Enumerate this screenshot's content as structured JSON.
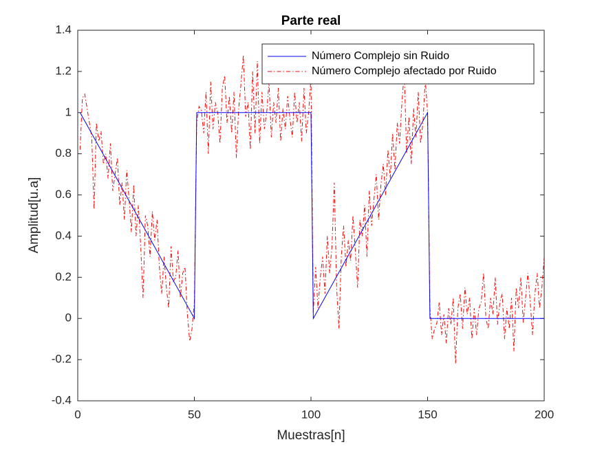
{
  "chart_data": {
    "type": "line",
    "title": "Parte real",
    "x_label": "Muestras[n]",
    "y_label": "Amplitud[u.a]",
    "xlim": [
      0,
      200
    ],
    "xticks": [
      0,
      50,
      100,
      150,
      200
    ],
    "ylim": [
      -0.4,
      1.4
    ],
    "yticks": [
      -0.4,
      -0.2,
      0,
      0.2,
      0.4,
      0.6,
      0.8,
      1,
      1.2,
      1.4
    ],
    "legend": "upper-right",
    "series": [
      {
        "name": "Número Complejo sin Ruido",
        "color": "#0000ff",
        "style": "solid",
        "x": [
          1,
          50,
          51,
          100,
          101,
          150,
          151,
          200
        ],
        "values": [
          1,
          0,
          1,
          1,
          0,
          1,
          0,
          0
        ]
      },
      {
        "name": "Número Complejo afectado por Ruido",
        "color": "#ff0000",
        "style": "dashdot",
        "x": [
          1,
          2,
          3,
          4,
          5,
          6,
          7,
          8,
          9,
          10,
          11,
          12,
          13,
          14,
          15,
          16,
          17,
          18,
          19,
          20,
          21,
          22,
          23,
          24,
          25,
          26,
          27,
          28,
          29,
          30,
          31,
          32,
          33,
          34,
          35,
          36,
          37,
          38,
          39,
          40,
          41,
          42,
          43,
          44,
          45,
          46,
          47,
          48,
          49,
          50,
          51,
          52,
          53,
          54,
          55,
          56,
          57,
          58,
          59,
          60,
          61,
          62,
          63,
          64,
          65,
          66,
          67,
          68,
          69,
          70,
          71,
          72,
          73,
          74,
          75,
          76,
          77,
          78,
          79,
          80,
          81,
          82,
          83,
          84,
          85,
          86,
          87,
          88,
          89,
          90,
          91,
          92,
          93,
          94,
          95,
          96,
          97,
          98,
          99,
          100,
          101,
          102,
          103,
          104,
          105,
          106,
          107,
          108,
          109,
          110,
          111,
          112,
          113,
          114,
          115,
          116,
          117,
          118,
          119,
          120,
          121,
          122,
          123,
          124,
          125,
          126,
          127,
          128,
          129,
          130,
          131,
          132,
          133,
          134,
          135,
          136,
          137,
          138,
          139,
          140,
          141,
          142,
          143,
          144,
          145,
          146,
          147,
          148,
          149,
          150,
          151,
          152,
          153,
          154,
          155,
          156,
          157,
          158,
          159,
          160,
          161,
          162,
          163,
          164,
          165,
          166,
          167,
          168,
          169,
          170,
          171,
          172,
          173,
          174,
          175,
          176,
          177,
          178,
          179,
          180,
          181,
          182,
          183,
          184,
          185,
          186,
          187,
          188,
          189,
          190,
          191,
          192,
          193,
          194,
          195,
          196,
          197,
          198,
          199,
          200
        ],
        "values": [
          0.82,
          1.07,
          1.09,
          1.02,
          0.95,
          0.88,
          0.53,
          0.95,
          0.86,
          0.91,
          0.75,
          0.8,
          0.68,
          0.85,
          0.62,
          0.7,
          0.78,
          0.55,
          0.66,
          0.48,
          0.72,
          0.58,
          0.42,
          0.65,
          0.4,
          0.55,
          0.35,
          0.1,
          0.5,
          0.45,
          0.3,
          0.52,
          0.38,
          0.48,
          0.25,
          0.12,
          0.3,
          0.15,
          0.05,
          0.35,
          0.18,
          0.2,
          0.33,
          0.1,
          0.22,
          0.25,
          0.02,
          -0.11,
          -0.05,
          0.08,
          0.95,
          1.03,
          1.01,
          0.9,
          1.1,
          0.8,
          1.15,
          0.92,
          1.05,
          1.0,
          0.85,
          1.12,
          1.18,
          0.95,
          1.08,
          0.9,
          1.1,
          0.78,
          1.02,
          1.14,
          1.28,
          0.98,
          1.05,
          0.82,
          1.2,
          0.9,
          1.25,
          0.85,
          1.1,
          0.92,
          1.0,
          1.15,
          0.88,
          1.05,
          0.95,
          1.12,
          0.86,
          1.02,
          0.92,
          1.08,
          0.97,
          0.88,
          1.1,
          0.95,
          1.05,
          0.86,
          1.12,
          0.9,
          1.0,
          1.17,
          0.03,
          0.25,
          0.05,
          0.2,
          0.3,
          0.12,
          0.4,
          0.22,
          0.35,
          0.66,
          0.15,
          -0.05,
          0.3,
          0.45,
          0.25,
          0.38,
          0.28,
          0.5,
          0.33,
          0.15,
          0.48,
          0.4,
          0.55,
          0.3,
          0.62,
          0.45,
          0.58,
          0.7,
          0.48,
          0.65,
          0.75,
          0.6,
          0.82,
          0.68,
          0.9,
          0.72,
          0.95,
          0.85,
          1.05,
          1.2,
          0.8,
          0.98,
          0.75,
          1.02,
          0.88,
          1.1,
          0.85,
          0.95,
          1.16,
          1.0,
          0.05,
          -0.1,
          -0.05,
          -0.02,
          0.08,
          -0.08,
          0.02,
          -0.12,
          0.05,
          -0.03,
          0.1,
          -0.22,
          0.05,
          0.12,
          -0.05,
          0.15,
          0.02,
          0.1,
          -0.1,
          0.05,
          -0.08,
          0.05,
          0.08,
          0.22,
          0.0,
          -0.05,
          0.1,
          0.02,
          0.2,
          -0.03,
          0.08,
          0.12,
          -0.1,
          0.05,
          -0.05,
          0.1,
          -0.16,
          0.15,
          0.05,
          0.2,
          -0.02,
          0.1,
          0.22,
          0.08,
          -0.08,
          0.12,
          0.22,
          0.05,
          0.15,
          0.3
        ]
      }
    ]
  }
}
